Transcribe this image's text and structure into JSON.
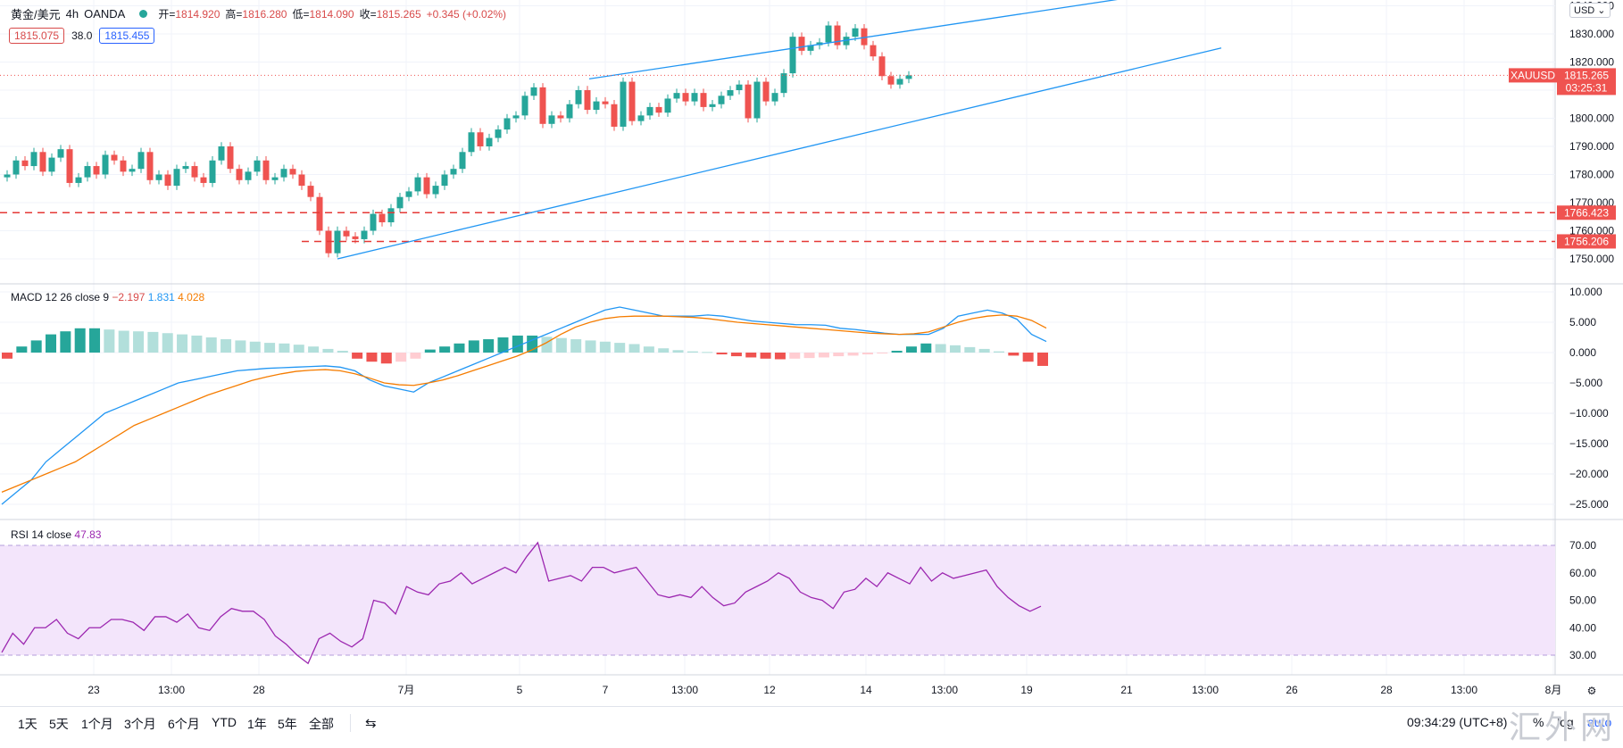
{
  "header": {
    "symbol": "黄金/美元",
    "interval": "4h",
    "broker": "OANDA",
    "open_label": "开=",
    "open": "1814.920",
    "high_label": "高=",
    "high": "1816.280",
    "low_label": "低=",
    "low": "1814.090",
    "close_label": "收=",
    "close": "1815.265",
    "change": "+0.345 (+0.02%)",
    "bid": "1815.075",
    "spread": "38.0",
    "ask": "1815.455"
  },
  "currency_button": "USD",
  "price_axis": {
    "ticks": [
      "1840.000",
      "1830.000",
      "1820.000",
      "1810.000",
      "1800.000",
      "1790.000",
      "1780.000",
      "1770.000",
      "1760.000",
      "1750.000"
    ],
    "current_symbol": "XAUUSD",
    "current_price": "1815.265",
    "countdown": "03:25:31",
    "line1": "1766.423",
    "line2": "1756.206"
  },
  "macd": {
    "label": "MACD 12 26 close 9",
    "hist": "−2.197",
    "macd": "1.831",
    "signal": "4.028",
    "ticks": [
      "10.000",
      "5.000",
      "0.000",
      "−5.000",
      "−10.000",
      "−15.000",
      "−20.000",
      "−25.000"
    ]
  },
  "rsi": {
    "label": "RSI 14 close",
    "value": "47.83",
    "ticks": [
      "70.00",
      "60.00",
      "50.00",
      "40.00",
      "30.00"
    ]
  },
  "time_axis": [
    "23",
    "13:00",
    "28",
    "7月",
    "5",
    "7",
    "13:00",
    "12",
    "14",
    "13:00",
    "19",
    "21",
    "13:00",
    "26",
    "28",
    "13:00",
    "8月"
  ],
  "toolbar": {
    "ranges": [
      "1天",
      "5天",
      "1个月",
      "3个月",
      "6个月",
      "YTD",
      "1年",
      "5年",
      "全部"
    ],
    "time": "09:34:29 (UTC+8)",
    "percent": "%",
    "log": "log",
    "auto": "auto"
  },
  "watermark": "汇外网",
  "colors": {
    "up": "#26a69a",
    "down": "#ef5350",
    "macd": "#2196f3",
    "signal": "#f57c00",
    "rsi": "#9c27b0",
    "rsi_band": "#f3e5fb",
    "trend": "#2196f3"
  },
  "chart_data": [
    {
      "type": "candlestick",
      "title": "黄金/美元 4h OANDA",
      "ylim": [
        1745,
        1845
      ],
      "support_lines": [
        1766.423,
        1756.206
      ],
      "closes": [
        1780,
        1785,
        1783,
        1788,
        1781,
        1786,
        1789,
        1777,
        1779,
        1783,
        1780,
        1787,
        1785,
        1781,
        1782,
        1788,
        1778,
        1780,
        1776,
        1782,
        1783,
        1779,
        1777,
        1785,
        1790,
        1782,
        1778,
        1781,
        1785,
        1778,
        1779,
        1782,
        1780,
        1776,
        1772,
        1760,
        1752,
        1760,
        1758,
        1757,
        1760,
        1766,
        1763,
        1768,
        1772,
        1774,
        1779,
        1773,
        1776,
        1780,
        1782,
        1788,
        1795,
        1790,
        1793,
        1796,
        1800,
        1801,
        1808,
        1811,
        1798,
        1801,
        1800,
        1805,
        1810,
        1803,
        1806,
        1805,
        1797,
        1813,
        1799,
        1801,
        1804,
        1802,
        1807,
        1809,
        1806,
        1809,
        1804,
        1805,
        1808,
        1810,
        1812,
        1800,
        1813,
        1806,
        1809,
        1816,
        1829,
        1824,
        1826,
        1827,
        1833,
        1826,
        1829,
        1832,
        1826,
        1822,
        1815,
        1812,
        1814,
        1815.265
      ],
      "x_range": [
        "23",
        "8月"
      ]
    },
    {
      "type": "line",
      "title": "MACD 12 26 close 9",
      "ylim": [
        -27,
        11
      ],
      "series": [
        {
          "name": "MACD",
          "values": [
            -25,
            -23,
            -21,
            -18,
            -16,
            -14,
            -12,
            -10,
            -9,
            -8,
            -7,
            -6,
            -5,
            -4.5,
            -4,
            -3.5,
            -3,
            -2.8,
            -2.6,
            -2.5,
            -2.4,
            -2.3,
            -2.2,
            -2.4,
            -3,
            -4.5,
            -5.5,
            -6,
            -6.5,
            -5,
            -4,
            -3,
            -2,
            -1,
            0,
            1,
            2,
            3,
            4,
            5,
            6,
            7,
            7.5,
            7,
            6.5,
            6,
            6,
            6,
            6.2,
            6,
            5.6,
            5.2,
            5,
            4.8,
            4.6,
            4.6,
            4.5,
            4,
            3.8,
            3.5,
            3.2,
            3,
            3,
            3,
            4,
            6,
            6.5,
            7,
            6.5,
            5.5,
            3,
            1.831
          ]
        },
        {
          "name": "Signal",
          "values": [
            -23,
            -22,
            -21,
            -20,
            -19,
            -18,
            -16.5,
            -15,
            -13.5,
            -12,
            -11,
            -10,
            -9,
            -8,
            -7,
            -6.2,
            -5.4,
            -4.6,
            -4,
            -3.5,
            -3.1,
            -2.9,
            -2.8,
            -3,
            -3.5,
            -4.2,
            -5,
            -5.3,
            -5.4,
            -5,
            -4.5,
            -3.8,
            -3,
            -2.2,
            -1.4,
            -0.6,
            0.4,
            1.6,
            3,
            4.2,
            5,
            5.6,
            5.9,
            6,
            6,
            6,
            5.9,
            5.8,
            5.6,
            5.3,
            5,
            4.8,
            4.6,
            4.4,
            4.2,
            4,
            3.8,
            3.6,
            3.4,
            3.2,
            3.1,
            3,
            3.1,
            3.4,
            4.2,
            5,
            5.6,
            6,
            6.2,
            6,
            5.3,
            4.028
          ]
        },
        {
          "name": "Histogram",
          "values": [
            -1,
            1,
            2,
            3,
            3.5,
            4,
            4,
            3.8,
            3.6,
            3.5,
            3.4,
            3.2,
            3,
            2.8,
            2.5,
            2.2,
            2,
            1.8,
            1.6,
            1.5,
            1.3,
            1,
            0.6,
            0.3,
            -1,
            -1.5,
            -1.8,
            -1.5,
            -1,
            0.5,
            1,
            1.5,
            2,
            2.2,
            2.5,
            2.8,
            2.8,
            2.6,
            2.4,
            2.2,
            2,
            1.8,
            1.6,
            1.4,
            1,
            0.7,
            0.4,
            0.2,
            0.1,
            -0.3,
            -0.6,
            -0.8,
            -1,
            -1.1,
            -1,
            -0.9,
            -0.8,
            -0.6,
            -0.5,
            -0.3,
            -0.1,
            0.3,
            1,
            1.5,
            1.4,
            1.2,
            0.9,
            0.6,
            0.2,
            -0.5,
            -1.5,
            -2.197
          ]
        }
      ]
    },
    {
      "type": "line",
      "title": "RSI 14 close",
      "ylim": [
        25,
        75
      ],
      "band": [
        30,
        70
      ],
      "series": [
        {
          "name": "RSI",
          "values": [
            31,
            38,
            34,
            40,
            40,
            43,
            38,
            36,
            40,
            40,
            43,
            43,
            42,
            39,
            44,
            44,
            42,
            45,
            40,
            39,
            44,
            47,
            46,
            46,
            43,
            37,
            34,
            30,
            27,
            36,
            38,
            35,
            33,
            36,
            50,
            49,
            45,
            55,
            53,
            52,
            56,
            57,
            60,
            56,
            58,
            60,
            62,
            60,
            66,
            71,
            57,
            58,
            59,
            57,
            62,
            62,
            60,
            61,
            62,
            57,
            52,
            51,
            52,
            51,
            55,
            51,
            48,
            49,
            53,
            55,
            57,
            60,
            58,
            53,
            51,
            50,
            47,
            53,
            54,
            58,
            55,
            60,
            58,
            56,
            62,
            57,
            60,
            58,
            59,
            60,
            61,
            55,
            51,
            48,
            46,
            47.83
          ]
        }
      ]
    }
  ]
}
